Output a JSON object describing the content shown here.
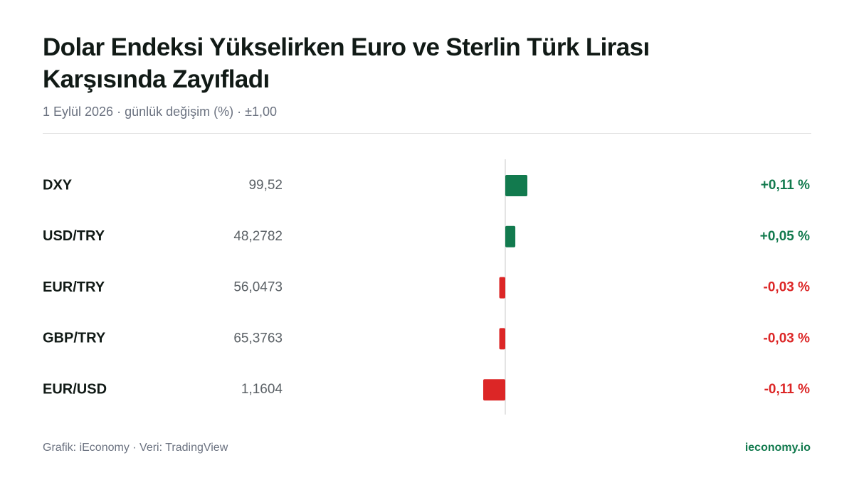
{
  "chart_data": {
    "type": "diverging-bar",
    "title": "Dolar Endeksi Yükselirken Euro ve Sterlin Türk Lirası Karşısında Zayıfladı",
    "subtitle": "1 Eylül 2026 · günlük değişim (%) · ±1,00",
    "categories": [
      "DXY",
      "USD/TRY",
      "EUR/TRY",
      "GBP/TRY",
      "EUR/USD"
    ],
    "prices": [
      "99,52",
      "48,2782",
      "56,0473",
      "65,3763",
      "1,1604"
    ],
    "values": [
      0.11,
      0.05,
      -0.03,
      -0.03,
      -0.11
    ],
    "value_labels": [
      "+0,11 %",
      "+0,05 %",
      "-0,03 %",
      "-0,03 %",
      "-0,11 %"
    ],
    "xlim": [
      -1,
      1
    ],
    "colors": {
      "positive": "#127a4e",
      "negative": "#dc2626"
    }
  },
  "footer": {
    "source": "Grafik: iEconomy · Veri: TradingView",
    "brand": "ieconomy.io"
  }
}
